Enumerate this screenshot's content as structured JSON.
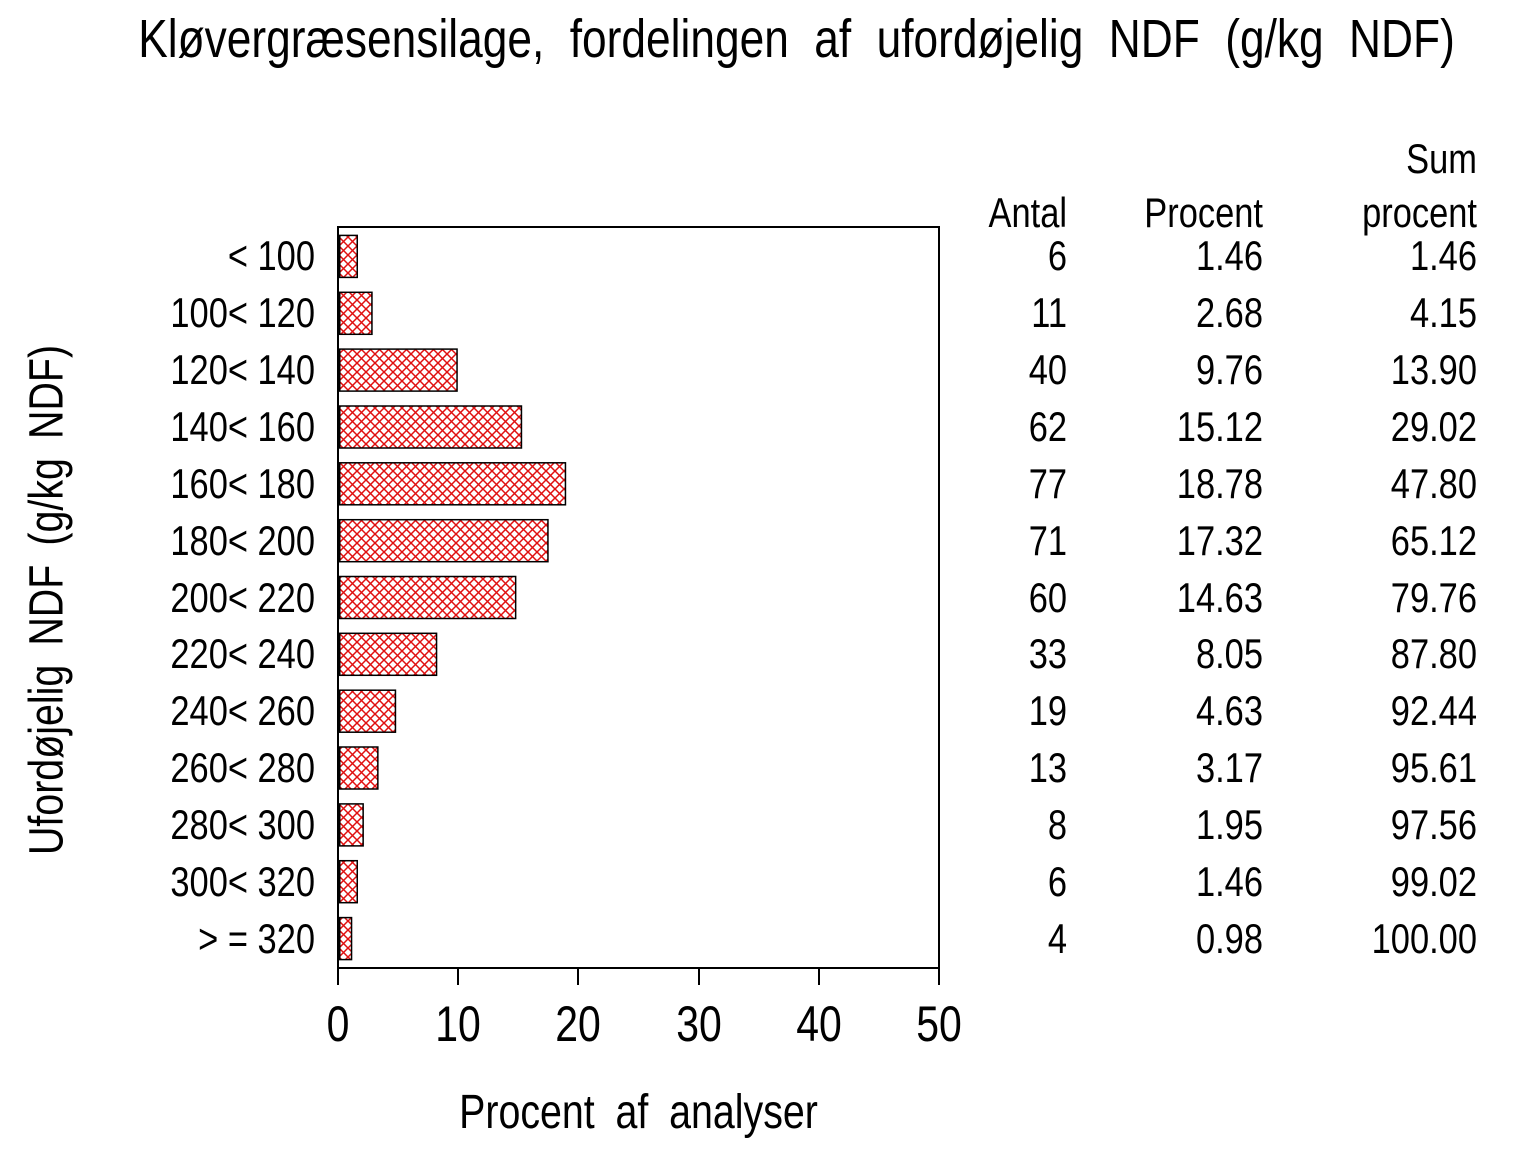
{
  "title": "Kløvergræsensilage, fordelingen af ufordøjelig NDF (g/kg NDF)",
  "y_axis_label": "Ufordøjelig NDF (g/kg NDF)",
  "x_axis_label": "Procent af analyser",
  "table": {
    "headers": {
      "antal": "Antal",
      "procent": "Procent",
      "sum_line1": "Sum",
      "sum_line2": "procent"
    },
    "rows": [
      {
        "label": "< 100",
        "antal": "6",
        "procent": "1.46",
        "sum": "1.46"
      },
      {
        "label": "100< 120",
        "antal": "11",
        "procent": "2.68",
        "sum": "4.15"
      },
      {
        "label": "120< 140",
        "antal": "40",
        "procent": "9.76",
        "sum": "13.90"
      },
      {
        "label": "140< 160",
        "antal": "62",
        "procent": "15.12",
        "sum": "29.02"
      },
      {
        "label": "160< 180",
        "antal": "77",
        "procent": "18.78",
        "sum": "47.80"
      },
      {
        "label": "180< 200",
        "antal": "71",
        "procent": "17.32",
        "sum": "65.12"
      },
      {
        "label": "200< 220",
        "antal": "60",
        "procent": "14.63",
        "sum": "79.76"
      },
      {
        "label": "220< 240",
        "antal": "33",
        "procent": "8.05",
        "sum": "87.80"
      },
      {
        "label": "240< 260",
        "antal": "19",
        "procent": "4.63",
        "sum": "92.44"
      },
      {
        "label": "260< 280",
        "antal": "13",
        "procent": "3.17",
        "sum": "95.61"
      },
      {
        "label": "280< 300",
        "antal": "8",
        "procent": "1.95",
        "sum": "97.56"
      },
      {
        "label": "300< 320",
        "antal": "6",
        "procent": "1.46",
        "sum": "99.02"
      },
      {
        "label": "> = 320",
        "antal": "4",
        "procent": "0.98",
        "sum": "100.00"
      }
    ]
  },
  "chart_data": {
    "type": "bar",
    "orientation": "horizontal",
    "title": "Kløvergræsensilage, fordelingen af ufordøjelig NDF (g/kg NDF)",
    "xlabel": "Procent af analyser",
    "ylabel": "Ufordøjelig NDF (g/kg NDF)",
    "categories": [
      "< 100",
      "100< 120",
      "120< 140",
      "140< 160",
      "160< 180",
      "180< 200",
      "200< 220",
      "220< 240",
      "240< 260",
      "260< 280",
      "280< 300",
      "300< 320",
      "> = 320"
    ],
    "series": [
      {
        "name": "Antal",
        "values": [
          6,
          11,
          40,
          62,
          77,
          71,
          60,
          33,
          19,
          13,
          8,
          6,
          4
        ]
      },
      {
        "name": "Procent",
        "values": [
          1.46,
          2.68,
          9.76,
          15.12,
          18.78,
          17.32,
          14.63,
          8.05,
          4.63,
          3.17,
          1.95,
          1.46,
          0.98
        ]
      },
      {
        "name": "Sum procent",
        "values": [
          1.46,
          4.15,
          13.9,
          29.02,
          47.8,
          65.12,
          79.76,
          87.8,
          92.44,
          95.61,
          97.56,
          99.02,
          100.0
        ]
      }
    ],
    "bar_series": "Procent",
    "xticks": [
      0,
      10,
      20,
      30,
      40,
      50
    ],
    "xlim": [
      0,
      50
    ],
    "grid": false,
    "legend": false,
    "bar_pattern": "diagonal-crosshatch",
    "colors": {
      "bar_hatch": "#e01010",
      "bar_border": "#000000",
      "axis": "#000000",
      "text": "#000000",
      "background": "#ffffff"
    }
  }
}
